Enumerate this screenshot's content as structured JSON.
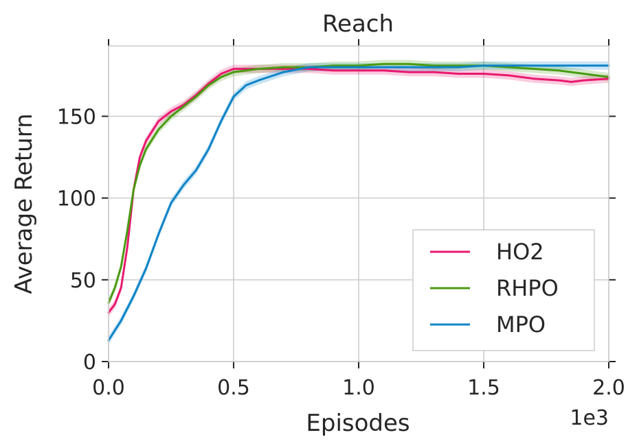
{
  "chart_data": {
    "type": "line",
    "title": "Reach",
    "xlabel": "Episodes",
    "ylabel": "Average Return",
    "x_scale_label": "1e3",
    "xlim": [
      0,
      2.0
    ],
    "ylim": [
      0,
      193
    ],
    "x_ticks": [
      "0.0",
      "0.5",
      "1.0",
      "1.5",
      "2.0"
    ],
    "y_ticks": [
      "0",
      "50",
      "100",
      "150"
    ],
    "grid": true,
    "legend_position": "bottom-right",
    "series": [
      {
        "name": "HO2",
        "color": "#e8196e",
        "x": [
          0,
          0.025,
          0.05,
          0.075,
          0.1,
          0.125,
          0.15,
          0.2,
          0.25,
          0.3,
          0.35,
          0.4,
          0.45,
          0.5,
          0.55,
          0.6,
          0.7,
          0.8,
          0.9,
          1.0,
          1.1,
          1.2,
          1.3,
          1.4,
          1.5,
          1.6,
          1.7,
          1.8,
          1.85,
          1.9,
          2.0
        ],
        "y": [
          30,
          35,
          45,
          70,
          105,
          125,
          135,
          147,
          153,
          157,
          163,
          170,
          176,
          179,
          179,
          179,
          179,
          179,
          178,
          178,
          178,
          177,
          177,
          176,
          176,
          175,
          173,
          172,
          171,
          172,
          173
        ]
      },
      {
        "name": "RHPO",
        "color": "#4a9a11",
        "x": [
          0,
          0.025,
          0.05,
          0.075,
          0.1,
          0.125,
          0.15,
          0.2,
          0.25,
          0.3,
          0.35,
          0.4,
          0.45,
          0.5,
          0.55,
          0.6,
          0.7,
          0.8,
          0.9,
          1.0,
          1.1,
          1.2,
          1.3,
          1.4,
          1.5,
          1.6,
          1.7,
          1.8,
          1.9,
          2.0
        ],
        "y": [
          36,
          45,
          58,
          80,
          105,
          120,
          130,
          142,
          150,
          156,
          162,
          169,
          174,
          177,
          178,
          179,
          180,
          180,
          181,
          181,
          182,
          182,
          181,
          181,
          181,
          180,
          179,
          178,
          176,
          174
        ]
      },
      {
        "name": "MPO",
        "color": "#0e84c8",
        "x": [
          0,
          0.05,
          0.1,
          0.15,
          0.2,
          0.25,
          0.3,
          0.35,
          0.4,
          0.45,
          0.5,
          0.55,
          0.6,
          0.7,
          0.8,
          0.9,
          1.0,
          1.1,
          1.2,
          1.3,
          1.4,
          1.5,
          1.6,
          1.7,
          1.8,
          1.9,
          2.0
        ],
        "y": [
          13,
          25,
          40,
          57,
          78,
          97,
          108,
          117,
          130,
          147,
          162,
          169,
          172,
          177,
          180,
          180,
          180,
          180,
          180,
          180,
          180,
          181,
          181,
          181,
          181,
          181,
          181
        ]
      }
    ]
  }
}
